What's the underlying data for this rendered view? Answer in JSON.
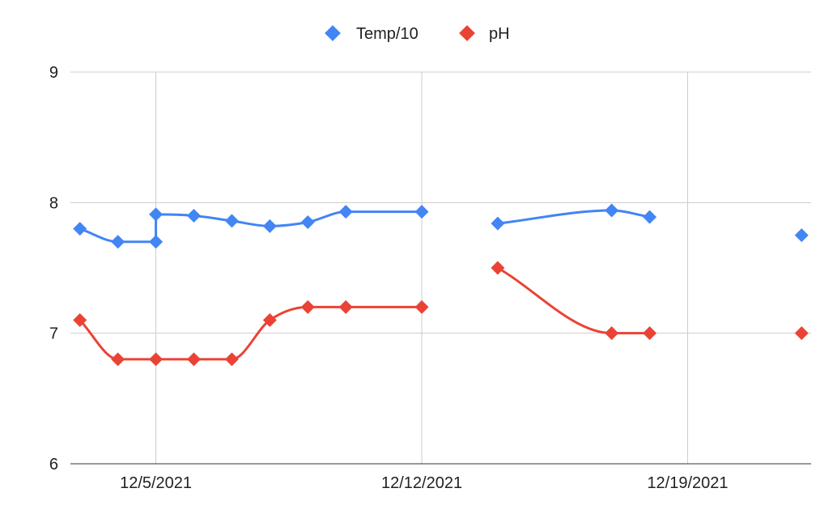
{
  "chart_data": {
    "type": "line",
    "x_type": "date",
    "x_ticks": [
      "2021-12-05",
      "2021-12-12",
      "2021-12-19"
    ],
    "x_tick_labels": [
      "12/5/2021",
      "12/12/2021",
      "12/19/2021"
    ],
    "xlim": [
      "2021-12-02 18:00",
      "2021-12-22 06:00"
    ],
    "ylim": [
      6,
      9
    ],
    "y_ticks": [
      6,
      7,
      8,
      9
    ],
    "y_tick_labels": [
      "6",
      "7",
      "8",
      "9"
    ],
    "grid": true,
    "legend_position": "top",
    "smooth": true,
    "marker": "diamond",
    "series": [
      {
        "name": "Temp/10",
        "color": "#4285f4",
        "points": [
          {
            "x": "2021-12-03",
            "y": 7.8
          },
          {
            "x": "2021-12-04",
            "y": 7.7
          },
          {
            "x": "2021-12-05",
            "y": 7.7
          },
          {
            "x": "2021-12-05",
            "y": 7.91
          },
          {
            "x": "2021-12-06",
            "y": 7.9
          },
          {
            "x": "2021-12-07",
            "y": 7.86
          },
          {
            "x": "2021-12-08",
            "y": 7.82
          },
          {
            "x": "2021-12-09",
            "y": 7.85
          },
          {
            "x": "2021-12-10",
            "y": 7.93
          },
          {
            "x": "2021-12-12",
            "y": 7.93
          },
          {
            "x": "2021-12-14",
            "y": 7.84
          },
          {
            "x": "2021-12-17",
            "y": 7.94
          },
          {
            "x": "2021-12-18",
            "y": 7.89
          },
          {
            "x": "2021-12-22",
            "y": 7.75
          }
        ],
        "segments": [
          [
            0,
            9
          ],
          [
            10,
            12
          ],
          [
            13,
            13
          ]
        ]
      },
      {
        "name": "pH",
        "color": "#ea4335",
        "points": [
          {
            "x": "2021-12-03",
            "y": 7.1
          },
          {
            "x": "2021-12-04",
            "y": 6.8
          },
          {
            "x": "2021-12-05",
            "y": 6.8
          },
          {
            "x": "2021-12-06",
            "y": 6.8
          },
          {
            "x": "2021-12-07",
            "y": 6.8
          },
          {
            "x": "2021-12-08",
            "y": 7.1
          },
          {
            "x": "2021-12-09",
            "y": 7.2
          },
          {
            "x": "2021-12-10",
            "y": 7.2
          },
          {
            "x": "2021-12-12",
            "y": 7.2
          },
          {
            "x": "2021-12-14",
            "y": 7.5
          },
          {
            "x": "2021-12-17",
            "y": 7.0
          },
          {
            "x": "2021-12-18",
            "y": 7.0
          },
          {
            "x": "2021-12-22",
            "y": 7.0
          }
        ],
        "segments": [
          [
            0,
            8
          ],
          [
            9,
            11
          ],
          [
            12,
            12
          ]
        ]
      }
    ]
  }
}
